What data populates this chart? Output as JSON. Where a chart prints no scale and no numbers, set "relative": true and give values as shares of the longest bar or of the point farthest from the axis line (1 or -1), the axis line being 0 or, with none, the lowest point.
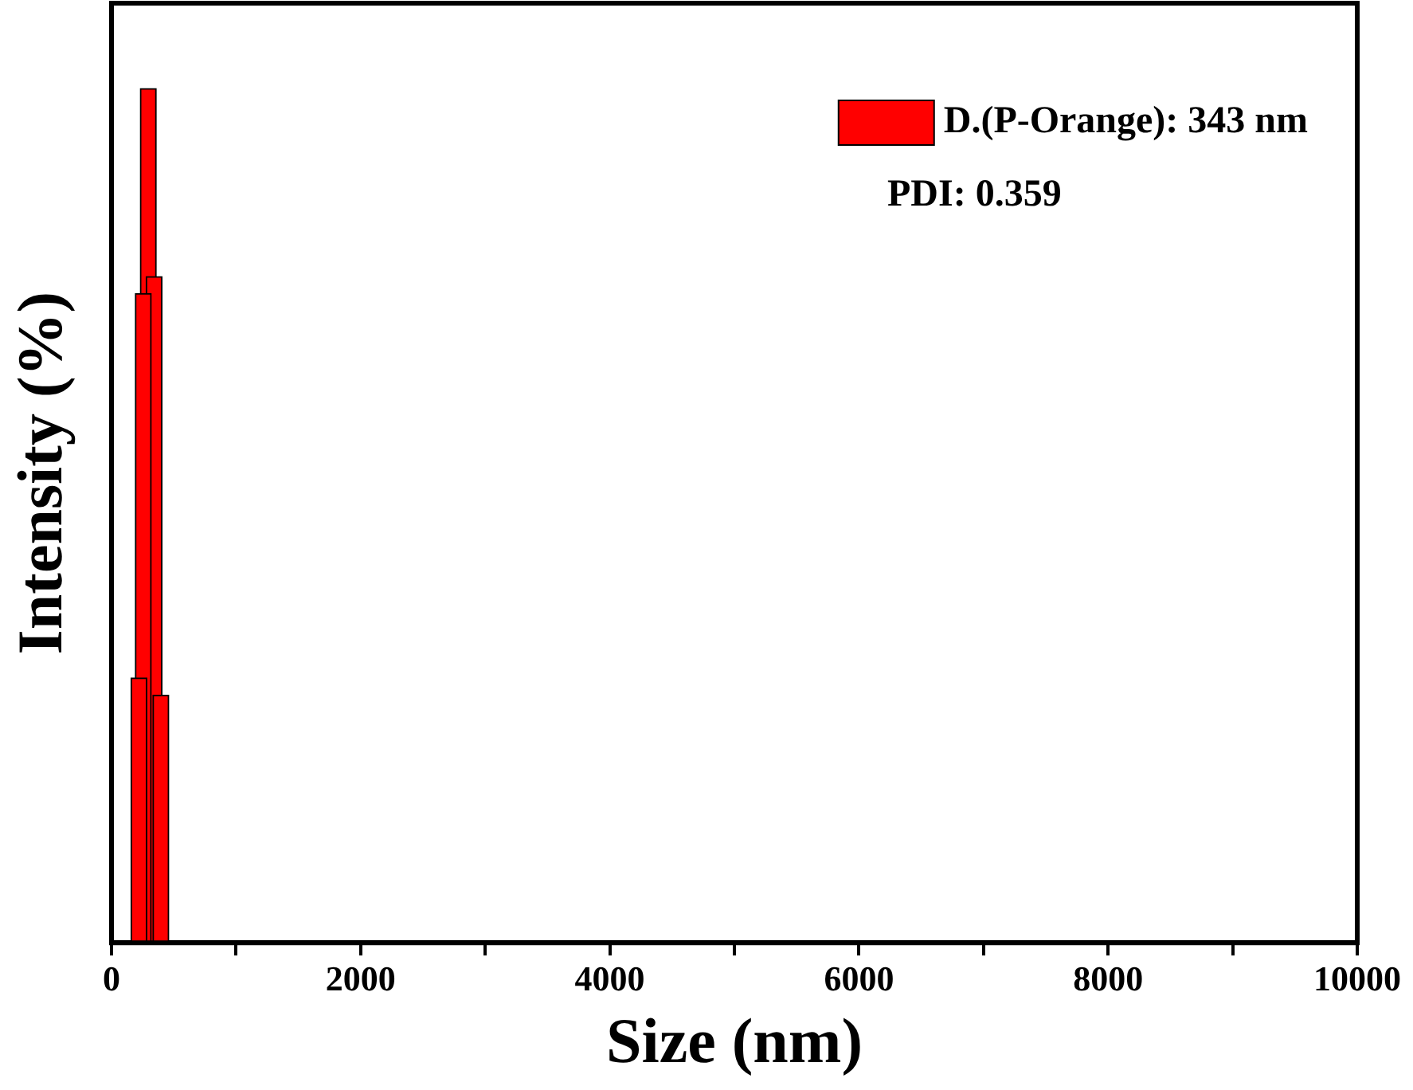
{
  "chart_data": {
    "type": "bar",
    "xlabel": "Size (nm)",
    "ylabel": "Intensity (%)",
    "relative": true,
    "x": [
      220,
      255,
      295,
      342,
      396
    ],
    "series": [
      {
        "name": "D.(P-Orange): 343 nm",
        "color": "#ff0000",
        "values": [
          0.31,
          0.76,
          1,
          0.78,
          0.29
        ]
      }
    ],
    "xlim": [
      0,
      10000
    ],
    "xticks": [
      0,
      {
        "value": 1000,
        "label": null
      },
      2000,
      {
        "value": 3000,
        "label": null
      },
      4000,
      {
        "value": 5000,
        "label": null
      },
      6000,
      {
        "value": 7000,
        "label": null
      },
      8000,
      {
        "value": 9000,
        "label": null
      },
      10000
    ],
    "tick_labels": "x",
    "grid": false,
    "legend": "top right",
    "annotations": [
      "PDI: 0.359"
    ]
  }
}
